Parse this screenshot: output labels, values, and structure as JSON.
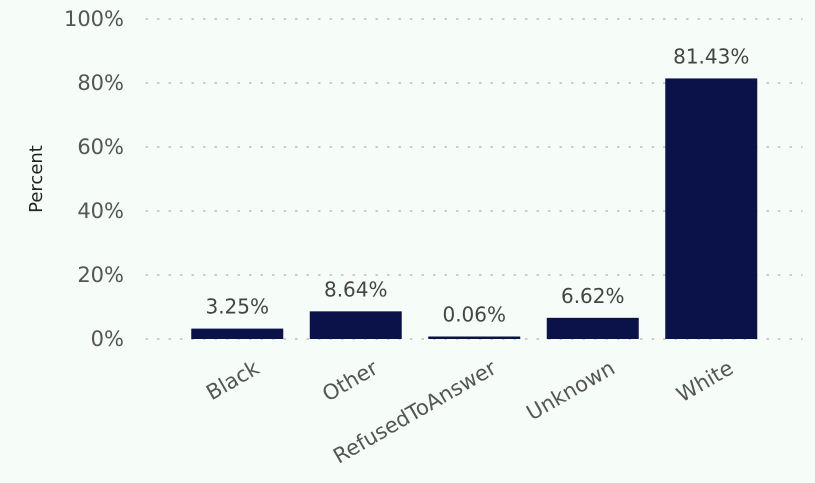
{
  "chart_data": {
    "type": "bar",
    "categories": [
      "Black",
      "Other",
      "RefusedToAnswer",
      "Unknown",
      "White"
    ],
    "values": [
      3.25,
      8.64,
      0.06,
      6.62,
      81.43
    ],
    "data_labels": [
      "3.25%",
      "8.64%",
      "0.06%",
      "6.62%",
      "81.43%"
    ],
    "title": "",
    "xlabel": "",
    "ylabel": "Percent",
    "ylim": [
      0,
      100
    ],
    "y_ticks": [
      0,
      20,
      40,
      60,
      80,
      100
    ],
    "y_tick_labels": [
      "0%",
      "20%",
      "40%",
      "60%",
      "80%",
      "100%"
    ],
    "grid": true,
    "legend": "none",
    "colors": {
      "bar": "#0b1149",
      "background": "#f6fdf8",
      "gridline": "#a9b4ad"
    }
  }
}
